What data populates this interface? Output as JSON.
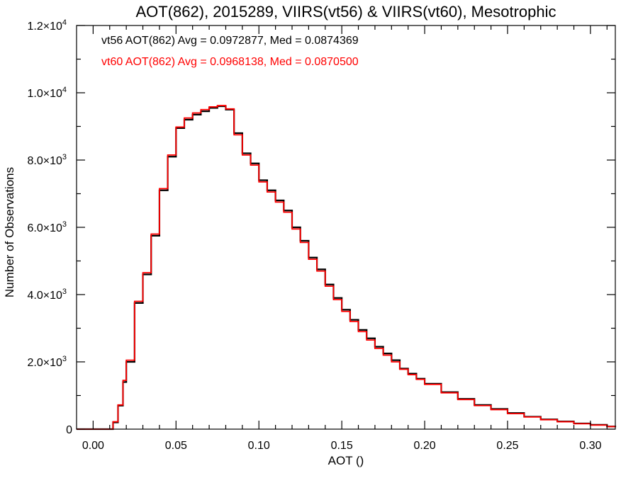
{
  "chart_data": {
    "type": "line",
    "title": "AOT(862), 2015289, VIIRS(vt56) & VIIRS(vt60), Mesotrophic",
    "xlabel": "AOT ()",
    "ylabel": "Number of Observations",
    "xlim": [
      -0.01,
      0.315
    ],
    "ylim": [
      0,
      12000
    ],
    "x_ticks": [
      {
        "value": 0.0,
        "label": "0.00"
      },
      {
        "value": 0.05,
        "label": "0.05"
      },
      {
        "value": 0.1,
        "label": "0.10"
      },
      {
        "value": 0.15,
        "label": "0.15"
      },
      {
        "value": 0.2,
        "label": "0.20"
      },
      {
        "value": 0.25,
        "label": "0.25"
      },
      {
        "value": 0.3,
        "label": "0.30"
      }
    ],
    "y_ticks": [
      {
        "value": 0,
        "label": "0",
        "exp": ""
      },
      {
        "value": 2000,
        "label": "2.0×10",
        "exp": "3"
      },
      {
        "value": 4000,
        "label": "4.0×10",
        "exp": "3"
      },
      {
        "value": 6000,
        "label": "6.0×10",
        "exp": "3"
      },
      {
        "value": 8000,
        "label": "8.0×10",
        "exp": "3"
      },
      {
        "value": 10000,
        "label": "1.0×10",
        "exp": "4"
      },
      {
        "value": 12000,
        "label": "1.2×10",
        "exp": "4"
      }
    ],
    "grid": false,
    "legend_position": "top-left",
    "series": [
      {
        "name": "vt56",
        "legend_text": "vt56 AOT(862) Avg = 0.0972877, Med = 0.0874369",
        "color": "#000000",
        "x": [
          -0.01,
          0.0,
          0.005,
          0.01,
          0.012,
          0.015,
          0.018,
          0.02,
          0.025,
          0.03,
          0.035,
          0.04,
          0.045,
          0.05,
          0.055,
          0.06,
          0.065,
          0.07,
          0.075,
          0.08,
          0.085,
          0.09,
          0.095,
          0.1,
          0.105,
          0.11,
          0.115,
          0.12,
          0.125,
          0.13,
          0.135,
          0.14,
          0.145,
          0.15,
          0.155,
          0.16,
          0.165,
          0.17,
          0.175,
          0.18,
          0.185,
          0.19,
          0.195,
          0.2,
          0.21,
          0.22,
          0.23,
          0.24,
          0.25,
          0.26,
          0.27,
          0.28,
          0.29,
          0.3,
          0.31,
          0.315
        ],
        "y": [
          0,
          0,
          0,
          0,
          200,
          700,
          1400,
          2000,
          3750,
          4600,
          5750,
          7100,
          8100,
          8950,
          9200,
          9350,
          9450,
          9550,
          9600,
          9500,
          8800,
          8200,
          7900,
          7400,
          7100,
          6800,
          6500,
          6000,
          5600,
          5100,
          4750,
          4300,
          3900,
          3550,
          3250,
          2950,
          2700,
          2450,
          2250,
          2050,
          1800,
          1650,
          1500,
          1350,
          1100,
          900,
          720,
          600,
          480,
          370,
          290,
          230,
          170,
          130,
          80,
          60
        ]
      },
      {
        "name": "vt60",
        "legend_text": "vt60 AOT(862) Avg = 0.0968138, Med = 0.0870500",
        "color": "#ff0000",
        "x": [
          -0.01,
          0.0,
          0.005,
          0.01,
          0.012,
          0.015,
          0.018,
          0.02,
          0.025,
          0.03,
          0.035,
          0.04,
          0.045,
          0.05,
          0.055,
          0.06,
          0.065,
          0.07,
          0.075,
          0.08,
          0.085,
          0.09,
          0.095,
          0.1,
          0.105,
          0.11,
          0.115,
          0.12,
          0.125,
          0.13,
          0.135,
          0.14,
          0.145,
          0.15,
          0.155,
          0.16,
          0.165,
          0.17,
          0.175,
          0.18,
          0.185,
          0.19,
          0.195,
          0.2,
          0.21,
          0.22,
          0.23,
          0.24,
          0.25,
          0.26,
          0.27,
          0.28,
          0.29,
          0.3,
          0.31,
          0.315
        ],
        "y": [
          0,
          0,
          0,
          0,
          220,
          720,
          1450,
          2050,
          3800,
          4650,
          5800,
          7150,
          8150,
          8980,
          9250,
          9400,
          9500,
          9580,
          9620,
          9520,
          8750,
          8150,
          7850,
          7350,
          7050,
          6750,
          6450,
          5950,
          5550,
          5050,
          4700,
          4250,
          3850,
          3500,
          3200,
          2900,
          2650,
          2400,
          2200,
          2000,
          1780,
          1620,
          1480,
          1330,
          1080,
          880,
          700,
          580,
          460,
          360,
          280,
          220,
          160,
          120,
          75,
          55
        ]
      }
    ]
  }
}
